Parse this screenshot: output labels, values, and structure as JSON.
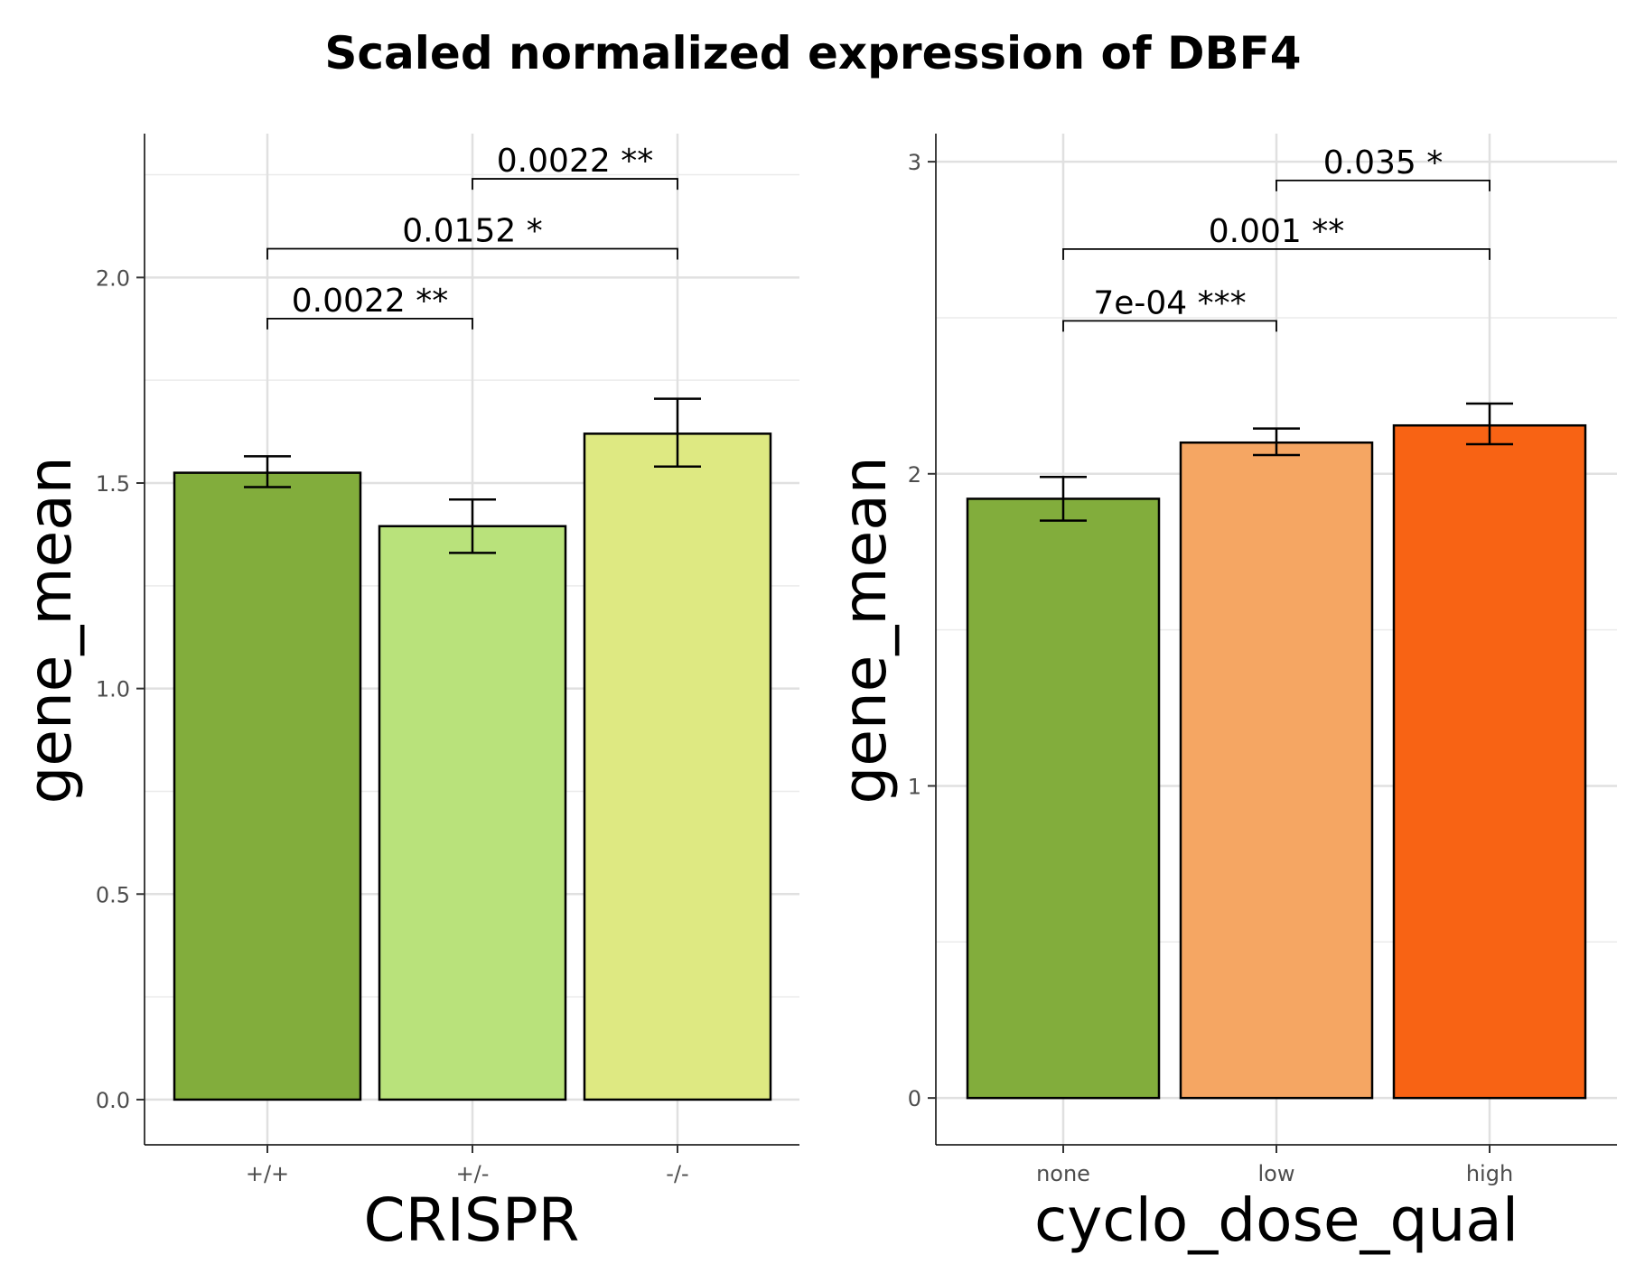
{
  "title": "Scaled normalized expression of DBF4",
  "chart_data": [
    {
      "type": "bar",
      "xlabel": "CRISPR",
      "ylabel": "gene_mean",
      "categories": [
        "+/+",
        "+/-",
        "-/-"
      ],
      "values": [
        1.525,
        1.395,
        1.62
      ],
      "error_low": [
        1.49,
        1.33,
        1.54
      ],
      "error_high": [
        1.565,
        1.46,
        1.705
      ],
      "colors": [
        "#82ad3c",
        "#b9e27b",
        "#dee982"
      ],
      "ylim": [
        -0.11,
        2.35
      ],
      "yticks": [
        0.0,
        0.5,
        1.0,
        1.5,
        2.0
      ],
      "ytick_labels": [
        "0.0",
        "0.5",
        "1.0",
        "1.5",
        "2.0"
      ],
      "grid": true,
      "annotations": [
        {
          "from": 0,
          "to": 1,
          "y": 1.9,
          "label": "0.0022 **"
        },
        {
          "from": 0,
          "to": 2,
          "y": 2.07,
          "label": "0.0152 *"
        },
        {
          "from": 1,
          "to": 2,
          "y": 2.24,
          "label": "0.0022 **"
        }
      ]
    },
    {
      "type": "bar",
      "xlabel": "cyclo_dose_qual",
      "ylabel": "gene_mean",
      "categories": [
        "none",
        "low",
        "high"
      ],
      "values": [
        1.92,
        2.1,
        2.155
      ],
      "error_low": [
        1.85,
        2.06,
        2.095
      ],
      "error_high": [
        1.99,
        2.145,
        2.225
      ],
      "colors": [
        "#82ad3c",
        "#f5a663",
        "#f86314"
      ],
      "ylim": [
        -0.15,
        3.09
      ],
      "yticks": [
        0,
        1,
        2,
        3
      ],
      "ytick_labels": [
        "0",
        "1",
        "2",
        "3"
      ],
      "grid": true,
      "annotations": [
        {
          "from": 0,
          "to": 1,
          "y": 2.49,
          "label": "7e-04 ***"
        },
        {
          "from": 0,
          "to": 2,
          "y": 2.72,
          "label": "0.001 **"
        },
        {
          "from": 1,
          "to": 2,
          "y": 2.94,
          "label": "0.035 *"
        }
      ]
    }
  ]
}
